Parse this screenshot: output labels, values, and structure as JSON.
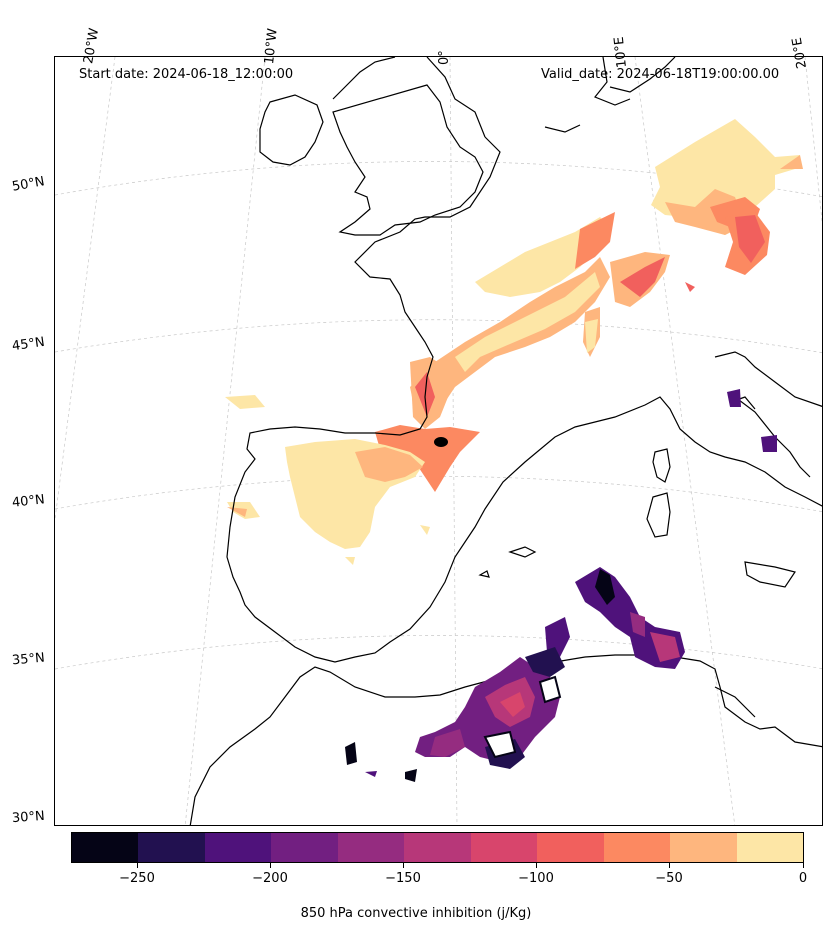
{
  "map": {
    "start_date": "Start date: 2024-06-18_12:00:00",
    "valid_date": "Valid_date: 2024-06-18T19:00:00.00",
    "lon_labels": [
      "20°W",
      "10°W",
      "0°",
      "10°E",
      "20°E"
    ],
    "lat_labels": [
      "50°N",
      "45°N",
      "40°N",
      "35°N",
      "30°N"
    ],
    "variable": "850 hPa convective inhibition (j/Kg)",
    "colormap": "magma",
    "marker": "black dot near Toulouse"
  },
  "colorbar": {
    "label": "850 hPa convective inhibition (j/Kg)",
    "tick_labels": [
      "−250",
      "−200",
      "−150",
      "−100",
      "−50",
      "0"
    ],
    "bins": [
      -275,
      -250,
      -225,
      -200,
      -175,
      -150,
      -125,
      -100,
      -75,
      -50,
      -25,
      0
    ],
    "colors": [
      "#050416",
      "#221150",
      "#4f127b",
      "#721f81",
      "#952c80",
      "#b73779",
      "#d8456c",
      "#f1605d",
      "#fc8961",
      "#feb67e",
      "#fde6a6"
    ]
  }
}
